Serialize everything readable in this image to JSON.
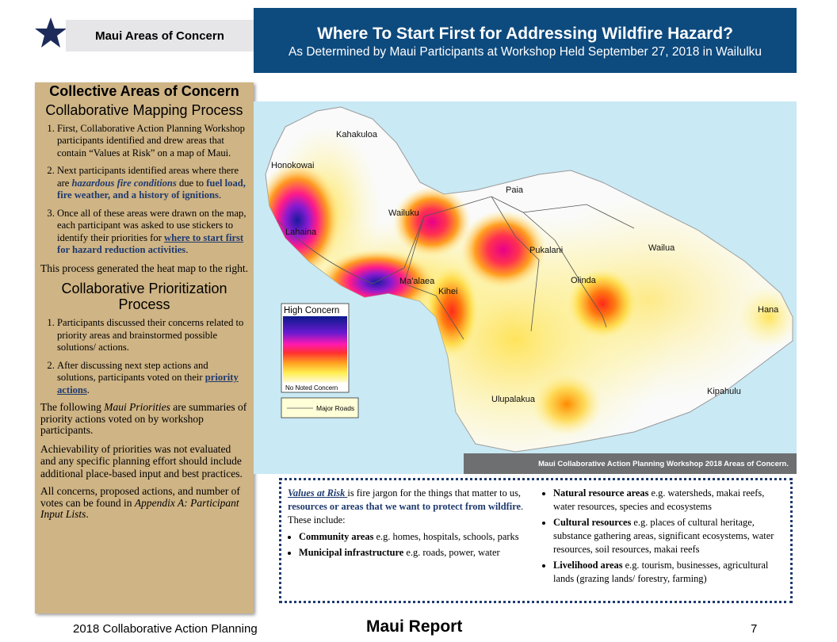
{
  "header": {
    "badge": "Maui Areas of Concern",
    "title": "Where To Start First for Addressing Wildfire Hazard?",
    "subtitle": "As Determined by Maui Participants at Workshop Held September 27, 2018 in Wailulku"
  },
  "left_panel": {
    "heading": "Collective Areas of Concern",
    "mapping_heading": "Collaborative Mapping Process",
    "mapping_steps": [
      [
        "First, Collaborative Action Planning Workshop participants identified and drew areas that contain “Values at Risk” on a map of Maui."
      ],
      [
        "Next participants identified areas where there are ",
        "hazardous fire conditions",
        " due to ",
        "fuel load, fire weather, and a history of ignitions",
        "."
      ],
      [
        "Once all of these areas were drawn on the map, each participant was asked to use stickers to identify their priorities for ",
        "where to start first",
        " for hazard reduction activities",
        "."
      ]
    ],
    "mapping_note": "This process generated the heat map to the right.",
    "prioritization_heading": "Collaborative Prioritization Process",
    "prioritization_steps": [
      [
        "Participants discussed their concerns related to priority areas and brainstormed possible solutions/ actions."
      ],
      [
        "After discussing next step actions and solutions, participants voted on their ",
        "priority actions",
        "."
      ]
    ],
    "paragraphs": [
      [
        "The following ",
        "Maui Priorities",
        " are summaries of priority actions voted on by workshop participants."
      ],
      [
        "Achievability of priorities was not evaluated and any specific planning effort should include additional place-based input and best practices."
      ],
      [
        "All concerns, proposed actions, and number of votes can be found in ",
        "Appendix A: Participant Input Lists",
        "."
      ]
    ]
  },
  "map": {
    "places": [
      "Kahakuloa",
      "Honokowai",
      "Paia",
      "Wailuku",
      "Lahaina",
      "Pukalani",
      "Wailua",
      "Olinda",
      "Ma'alaea",
      "Kihei",
      "Hana",
      "Kipahulu",
      "Ulupalakua"
    ],
    "legend": {
      "high": "High Concern",
      "low": "No Noted Concern",
      "roads": "Major Roads"
    },
    "caption": "Maui Collaborative Action Planning Workshop 2018 Areas of Concern."
  },
  "values_box": {
    "intro": [
      "Values at Risk ",
      "is fire jargon for the things that matter to us, ",
      "resources or areas that we want to protect from wildfire",
      ". These include:"
    ],
    "left_bullets": [
      [
        "Community areas",
        " e.g. homes, hospitals, schools, parks"
      ],
      [
        "Municipal infrastructure",
        " e.g. roads, power, water"
      ]
    ],
    "right_bullets": [
      [
        "Natural resource areas",
        " e.g. watersheds, makai reefs, water resources, species and ecosystems"
      ],
      [
        "Cultural resources",
        " e.g. places of cultural heritage, substance gathering areas, significant ecosystems, water resources, soil resources, makai reefs"
      ],
      [
        "Livelihood areas",
        " e.g. tourism, businesses, agricultural lands (grazing lands/ forestry, farming)"
      ]
    ]
  },
  "footer": {
    "left": "2018 Collaborative Action Planning",
    "center": "Maui Report",
    "page": "7"
  }
}
